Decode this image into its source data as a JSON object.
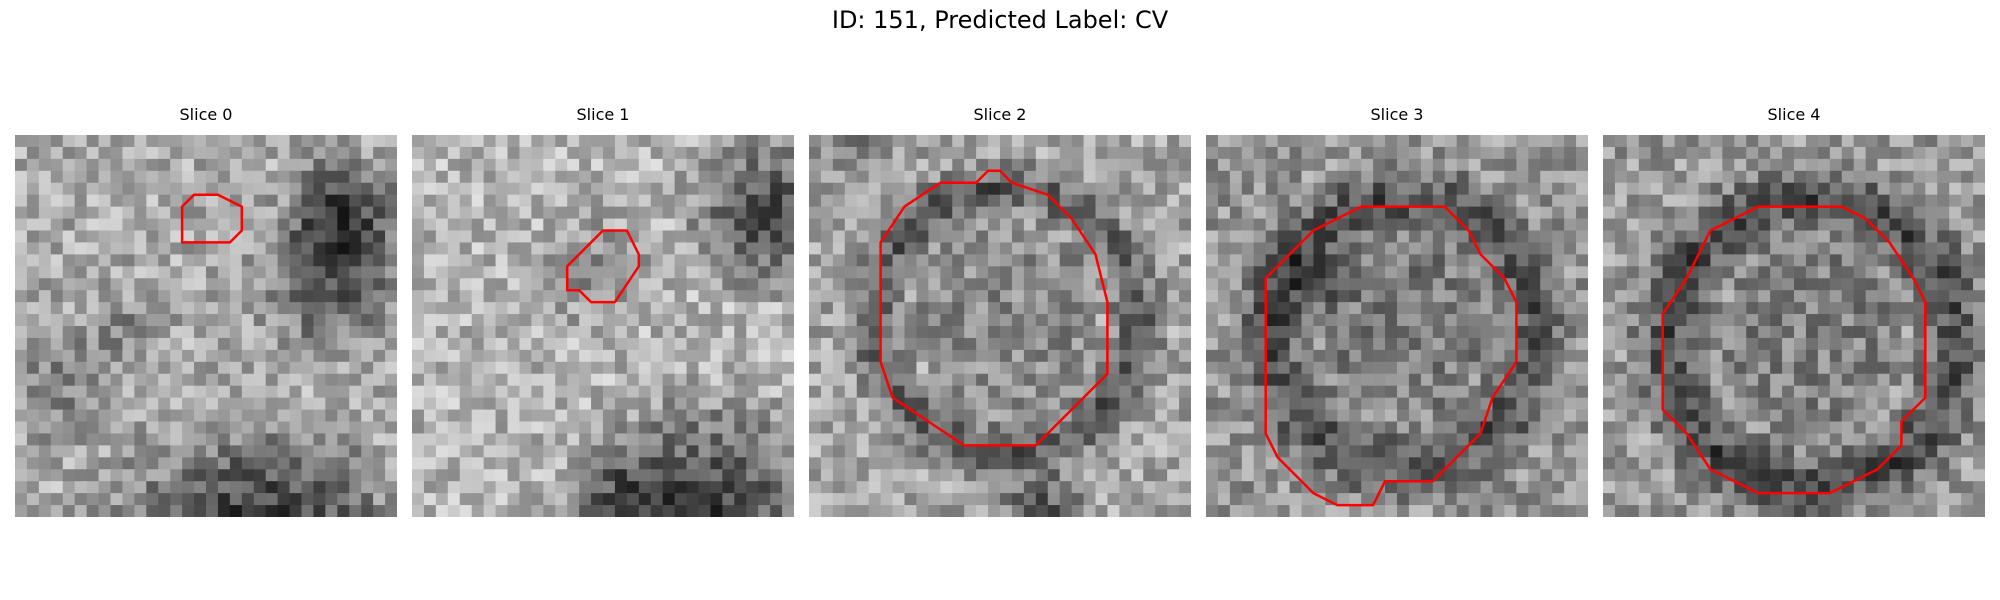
{
  "figure": {
    "title": "ID: 151, Predicted Label: CV"
  },
  "colors": {
    "contour": "#ff0000",
    "background": "#ffffff"
  },
  "panels": [
    {
      "title": "Slice 0",
      "seed": 11
    },
    {
      "title": "Slice 1",
      "seed": 23
    },
    {
      "title": "Slice 2",
      "seed": 37
    },
    {
      "title": "Slice 3",
      "seed": 51
    },
    {
      "title": "Slice 4",
      "seed": 67
    }
  ]
}
